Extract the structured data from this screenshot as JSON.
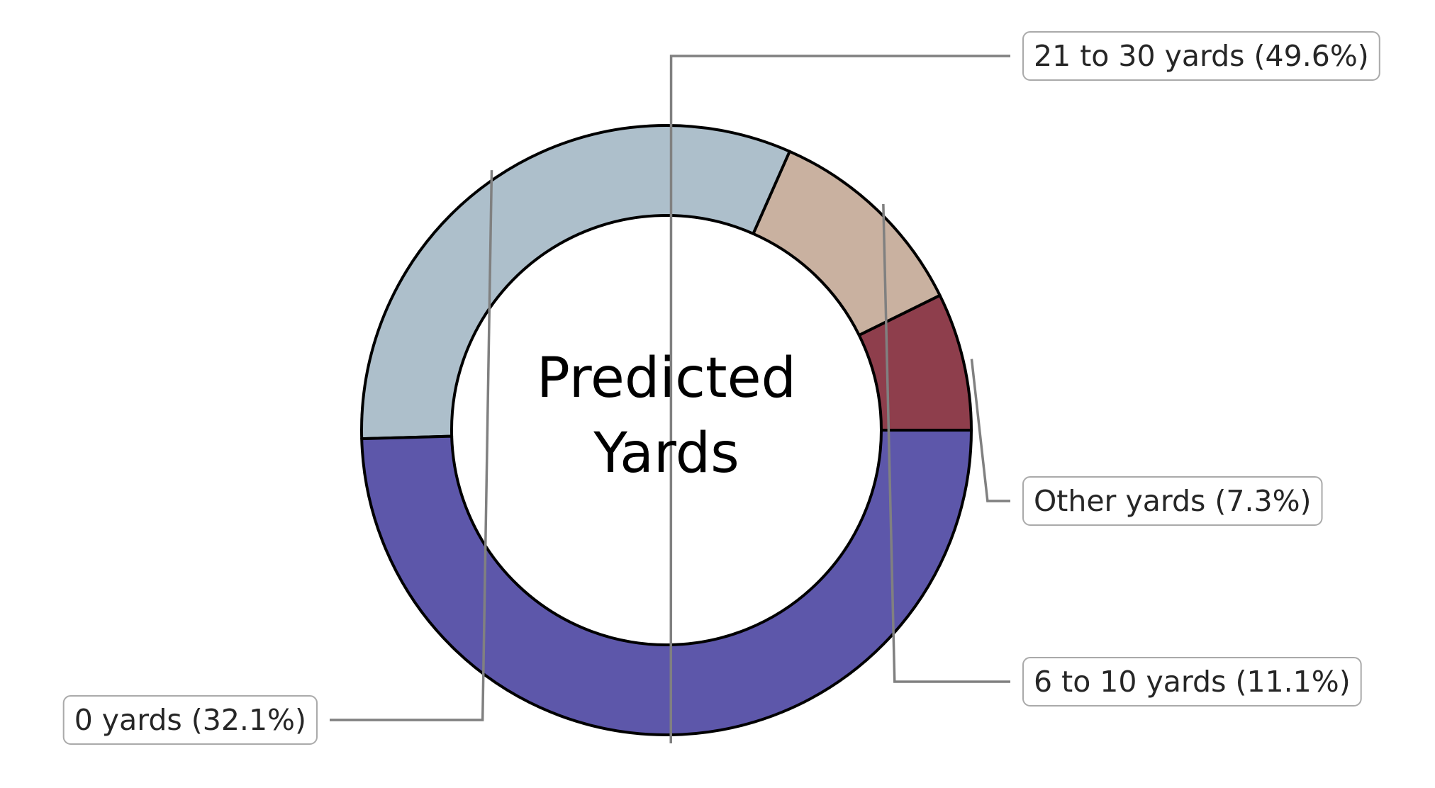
{
  "chart_data": {
    "type": "pie",
    "variant": "donut",
    "center_label": [
      "Predicted",
      "Yards"
    ],
    "slices": [
      {
        "label": "Other yards (7.3%)",
        "category": "Other yards",
        "value": 7.3,
        "color": "#8e3e4c"
      },
      {
        "label": "6 to 10 yards (11.1%)",
        "category": "6 to 10 yards",
        "value": 11.1,
        "color": "#c9b1a0"
      },
      {
        "label": "0 yards (32.1%)",
        "category": "0 yards",
        "value": 32.1,
        "color": "#adbfcb"
      },
      {
        "label": "21 to 30 yards (49.6%)",
        "category": "21 to 30 yards",
        "value": 49.6,
        "color": "#5d57aa"
      }
    ],
    "legend": "none"
  }
}
